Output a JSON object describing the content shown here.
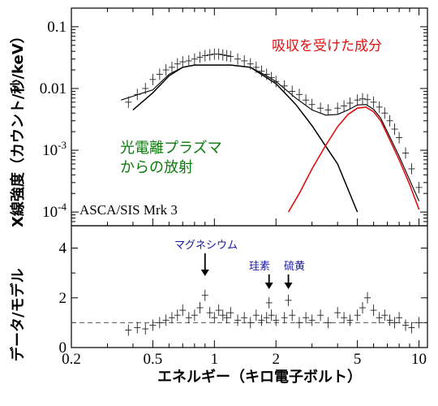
{
  "chart_data": [
    {
      "type": "line",
      "panel": "spectrum",
      "xscale": "log",
      "yscale": "log",
      "xlim": [
        0.2,
        11
      ],
      "ylim": [
        6e-05,
        0.2
      ],
      "ylabel": "X線強度（カウント/秒/keV）",
      "y_ticks": [
        {
          "value": 0.1,
          "label": "0.1"
        },
        {
          "value": 0.01,
          "label": "0.01"
        },
        {
          "value": 0.001,
          "label": "10",
          "sup": "-3"
        },
        {
          "value": 0.0001,
          "label": "10",
          "sup": "-4"
        }
      ],
      "annotations": {
        "absorbed": "吸収を受けた成分",
        "photo_line1": "光電離プラズマ",
        "photo_line2": "からの放射",
        "source": "ASCA/SIS Mrk 3"
      },
      "colors": {
        "absorbed": "#e01010",
        "photoionized": "#0a7a0a",
        "data": "#000000"
      },
      "series": [
        {
          "role": "photoionized-model",
          "x": [
            0.4,
            0.5,
            0.6,
            0.7,
            0.8,
            0.9,
            1.0,
            1.2,
            1.5,
            2.0,
            2.5,
            3.0,
            4.0,
            5.0
          ],
          "y": [
            0.0045,
            0.0085,
            0.016,
            0.022,
            0.024,
            0.024,
            0.024,
            0.024,
            0.022,
            0.012,
            0.0055,
            0.0025,
            0.0006,
            0.0001
          ]
        },
        {
          "role": "absorbed-model",
          "x": [
            2.3,
            2.6,
            3.0,
            3.5,
            4.0,
            4.5,
            5.0,
            5.5,
            6.0,
            6.5,
            7.0,
            8.0,
            9.0,
            10.0
          ],
          "y": [
            0.0001,
            0.0002,
            0.0005,
            0.0012,
            0.0024,
            0.0038,
            0.0048,
            0.005,
            0.0042,
            0.003,
            0.0018,
            0.0007,
            0.00028,
            0.00011
          ]
        },
        {
          "role": "total-model",
          "x": [
            0.35,
            0.4,
            0.45,
            0.5,
            0.6,
            0.7,
            0.8,
            0.9,
            1.0,
            1.2,
            1.5,
            1.8,
            2.0,
            2.5,
            3.0,
            3.5,
            4.0,
            4.5,
            5.0,
            5.5,
            6.0,
            6.5,
            7.0,
            8.0,
            10.0
          ],
          "y": [
            0.0065,
            0.0075,
            0.0085,
            0.0095,
            0.017,
            0.022,
            0.024,
            0.024,
            0.024,
            0.024,
            0.022,
            0.016,
            0.013,
            0.007,
            0.0045,
            0.0037,
            0.0038,
            0.0045,
            0.0054,
            0.0055,
            0.0046,
            0.0033,
            0.002,
            0.0008,
            0.00015
          ]
        },
        {
          "role": "data",
          "x": [
            0.38,
            0.42,
            0.46,
            0.5,
            0.54,
            0.58,
            0.62,
            0.66,
            0.7,
            0.75,
            0.8,
            0.85,
            0.9,
            0.95,
            1.0,
            1.05,
            1.1,
            1.15,
            1.2,
            1.3,
            1.4,
            1.5,
            1.6,
            1.7,
            1.8,
            1.9,
            2.0,
            2.2,
            2.4,
            2.6,
            2.8,
            3.0,
            3.3,
            3.6,
            4.0,
            4.3,
            4.6,
            5.0,
            5.3,
            5.6,
            6.0,
            6.4,
            6.8,
            7.2,
            7.6,
            8.0,
            8.6,
            9.2,
            10.0
          ],
          "y": [
            0.006,
            0.008,
            0.01,
            0.014,
            0.017,
            0.02,
            0.022,
            0.025,
            0.027,
            0.028,
            0.03,
            0.032,
            0.034,
            0.035,
            0.036,
            0.036,
            0.035,
            0.034,
            0.033,
            0.03,
            0.028,
            0.025,
            0.022,
            0.019,
            0.017,
            0.015,
            0.013,
            0.011,
            0.009,
            0.008,
            0.0065,
            0.0055,
            0.0048,
            0.0045,
            0.0048,
            0.0052,
            0.0058,
            0.0065,
            0.0068,
            0.0066,
            0.006,
            0.005,
            0.004,
            0.003,
            0.0022,
            0.0016,
            0.0009,
            0.0005,
            0.00025
          ]
        }
      ]
    },
    {
      "type": "scatter",
      "panel": "ratio",
      "xscale": "log",
      "xlim": [
        0.2,
        11
      ],
      "ylim": [
        0,
        4.9
      ],
      "xlabel": "エネルギー（キロ電子ボルト）",
      "ylabel": "データ/モデル",
      "x_ticks": [
        {
          "value": 0.2,
          "label": "0.2"
        },
        {
          "value": 0.5,
          "label": "0.5"
        },
        {
          "value": 1,
          "label": "1"
        },
        {
          "value": 2,
          "label": "2"
        },
        {
          "value": 5,
          "label": "5"
        },
        {
          "value": 10,
          "label": "10"
        }
      ],
      "y_ticks": [
        {
          "value": 0,
          "label": "0"
        },
        {
          "value": 2,
          "label": "2"
        },
        {
          "value": 4,
          "label": "4"
        }
      ],
      "reference_line": 1,
      "features": [
        {
          "label": "マグネシウム",
          "x": 0.9
        },
        {
          "label": "珪素",
          "x": 1.85
        },
        {
          "label": "硫黄",
          "x": 2.3
        }
      ],
      "colors": {
        "features": "#1a1aa8"
      },
      "series": [
        {
          "role": "ratio",
          "x": [
            0.38,
            0.42,
            0.46,
            0.5,
            0.54,
            0.58,
            0.62,
            0.66,
            0.7,
            0.75,
            0.8,
            0.85,
            0.9,
            0.95,
            1.0,
            1.05,
            1.1,
            1.15,
            1.2,
            1.3,
            1.4,
            1.5,
            1.6,
            1.7,
            1.8,
            1.85,
            1.9,
            2.0,
            2.2,
            2.3,
            2.4,
            2.6,
            2.8,
            3.0,
            3.3,
            3.6,
            4.0,
            4.3,
            4.6,
            5.0,
            5.3,
            5.6,
            6.0,
            6.4,
            6.8,
            7.2,
            7.6,
            8.0,
            8.6,
            9.2,
            10.0
          ],
          "y": [
            0.7,
            0.8,
            0.75,
            0.9,
            1.0,
            1.1,
            1.2,
            1.3,
            1.5,
            1.2,
            1.3,
            1.6,
            2.1,
            1.4,
            1.2,
            1.5,
            1.3,
            1.2,
            1.4,
            1.1,
            1.2,
            1.0,
            1.3,
            1.1,
            1.2,
            1.8,
            1.3,
            1.1,
            1.2,
            1.9,
            1.3,
            1.0,
            1.2,
            1.1,
            1.3,
            1.0,
            1.4,
            1.2,
            1.1,
            1.3,
            1.6,
            2.0,
            1.5,
            1.2,
            1.3,
            1.1,
            1.0,
            1.2,
            0.9,
            0.8,
            1.0
          ]
        }
      ]
    }
  ]
}
